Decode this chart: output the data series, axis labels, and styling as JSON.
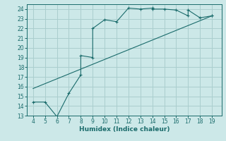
{
  "title": "",
  "xlabel": "Humidex (Indice chaleur)",
  "ylabel": "",
  "bg_color": "#cce8e8",
  "grid_color": "#aacece",
  "line_color": "#1a6b6b",
  "scatter_line": {
    "x": [
      4,
      5,
      6,
      7,
      8,
      8,
      9,
      9,
      10,
      11,
      12,
      13,
      14,
      14,
      15,
      16,
      17,
      17,
      18,
      19,
      19
    ],
    "y": [
      14.4,
      14.4,
      12.9,
      15.3,
      17.2,
      19.2,
      19.0,
      22.0,
      22.9,
      22.7,
      24.1,
      24.0,
      24.1,
      24.0,
      24.0,
      23.9,
      23.3,
      23.9,
      23.1,
      23.3,
      23.3
    ]
  },
  "straight_line": {
    "x": [
      4,
      19
    ],
    "y": [
      15.8,
      23.3
    ]
  },
  "xlim": [
    3.5,
    19.8
  ],
  "ylim": [
    13,
    24.5
  ],
  "xticks": [
    4,
    5,
    6,
    7,
    8,
    9,
    10,
    11,
    12,
    13,
    14,
    15,
    16,
    17,
    18,
    19
  ],
  "yticks": [
    13,
    14,
    15,
    16,
    17,
    18,
    19,
    20,
    21,
    22,
    23,
    24
  ],
  "tick_fontsize": 5.5,
  "label_fontsize": 6.5
}
